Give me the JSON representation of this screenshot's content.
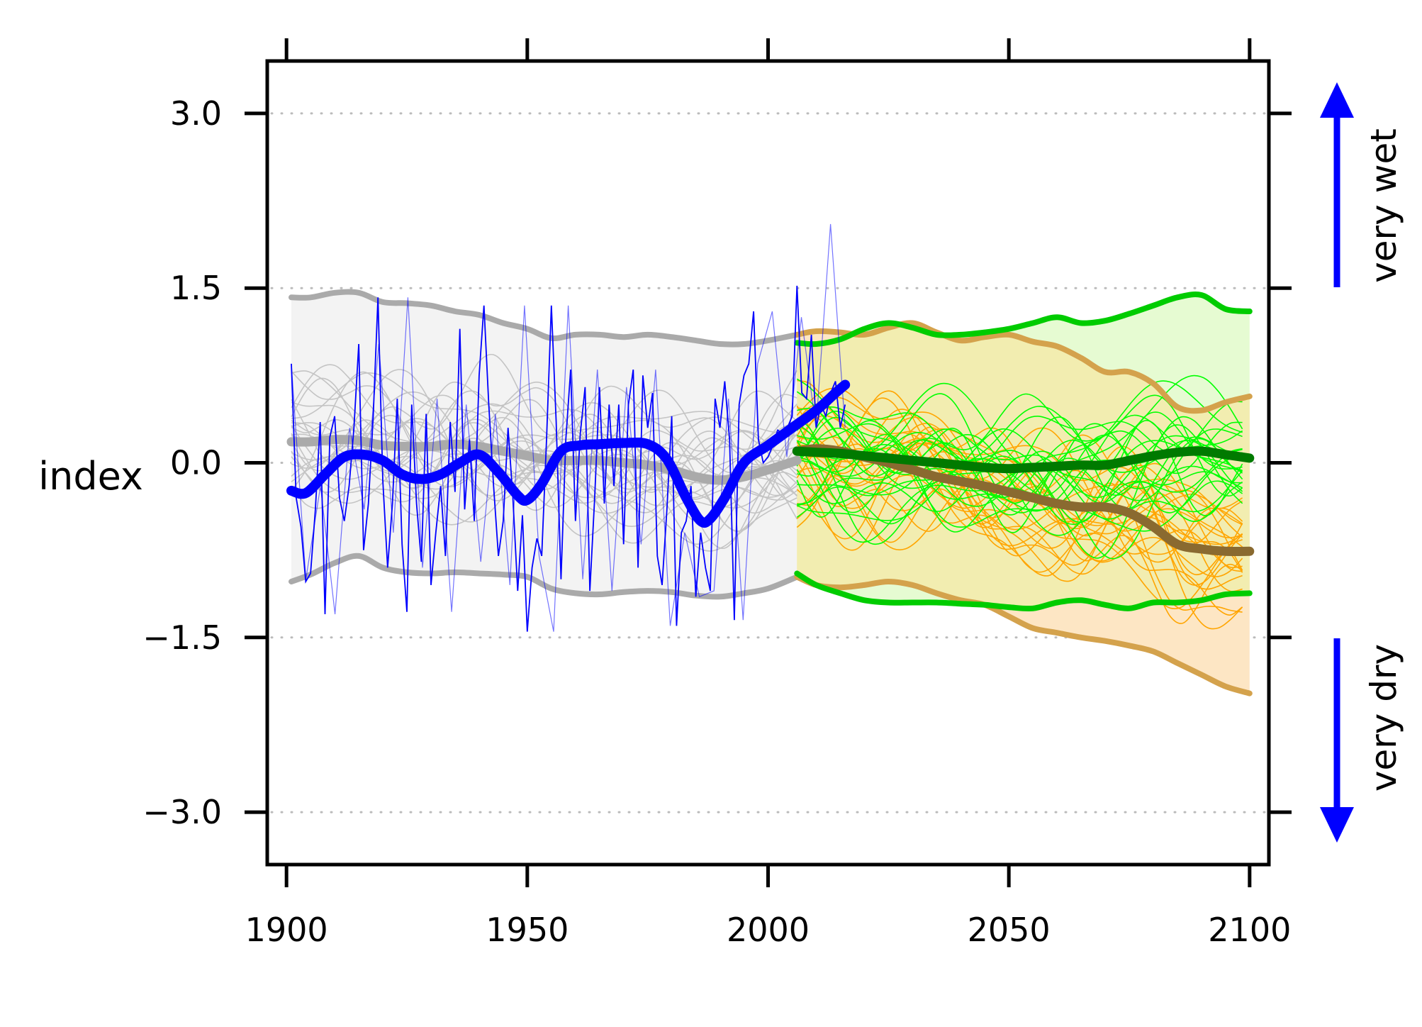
{
  "chart_data": {
    "type": "line",
    "title": "",
    "xlabel": "",
    "ylabel": "index",
    "xlim": [
      1896,
      2104
    ],
    "ylim": [
      -3.45,
      3.45
    ],
    "x_ticks": [
      1900,
      1950,
      2000,
      2050,
      2100
    ],
    "y_ticks": [
      3.0,
      1.5,
      0.0,
      -1.5,
      -3.0
    ],
    "y_tick_labels": [
      "3.0",
      "1.5",
      "0.0",
      "−1.5",
      "−3.0"
    ],
    "gridlines": "horizontal dotted at y ticks",
    "annotations": {
      "wet_label": "very wet",
      "dry_label": "very dry"
    },
    "colors": {
      "observed": "#0000ff",
      "historical": "#aaaaaa",
      "historical_band": "#f3f3f3",
      "scenario_green": "#00cc00",
      "scenario_green_mean": "#007a00",
      "scenario_green_thin": "#00ff00",
      "scenario_green_band": "#e6fbd2",
      "scenario_orange": "#d4a24c",
      "scenario_orange_mean": "#8a6a30",
      "scenario_orange_thin": "#ffa500",
      "scenario_orange_band": "#fde6c4",
      "overlap_band": "#f2edb0"
    },
    "series": [
      {
        "name": "historical ensemble upper bound",
        "x": [
          1901,
          1905,
          1910,
          1915,
          1920,
          1925,
          1930,
          1935,
          1940,
          1945,
          1950,
          1955,
          1960,
          1965,
          1970,
          1975,
          1980,
          1985,
          1990,
          1995,
          2000,
          2006
        ],
        "values": [
          1.42,
          1.42,
          1.46,
          1.46,
          1.38,
          1.37,
          1.35,
          1.3,
          1.27,
          1.2,
          1.15,
          1.07,
          1.1,
          1.1,
          1.08,
          1.1,
          1.08,
          1.05,
          1.02,
          1.02,
          1.05,
          1.1
        ]
      },
      {
        "name": "historical ensemble lower bound",
        "x": [
          1901,
          1905,
          1910,
          1915,
          1920,
          1925,
          1930,
          1935,
          1940,
          1945,
          1950,
          1955,
          1960,
          1965,
          1970,
          1975,
          1980,
          1985,
          1990,
          1995,
          2000,
          2006
        ],
        "values": [
          -1.02,
          -0.96,
          -0.86,
          -0.8,
          -0.9,
          -0.94,
          -0.95,
          -0.94,
          -0.95,
          -0.96,
          -0.98,
          -1.08,
          -1.12,
          -1.13,
          -1.11,
          -1.1,
          -1.11,
          -1.14,
          -1.15,
          -1.12,
          -1.08,
          -0.98
        ]
      },
      {
        "name": "historical ensemble mean",
        "x": [
          1901,
          1905,
          1910,
          1915,
          1920,
          1925,
          1930,
          1935,
          1940,
          1945,
          1950,
          1955,
          1960,
          1965,
          1970,
          1975,
          1980,
          1985,
          1990,
          1995,
          2000,
          2006
        ],
        "values": [
          0.18,
          0.18,
          0.2,
          0.19,
          0.15,
          0.14,
          0.14,
          0.16,
          0.14,
          0.1,
          0.06,
          0.02,
          0.02,
          0.02,
          0.0,
          -0.02,
          -0.06,
          -0.12,
          -0.15,
          -0.12,
          -0.06,
          0.02
        ]
      },
      {
        "name": "observed annual index",
        "x": [
          1901,
          1902,
          1903,
          1904,
          1905,
          1906,
          1907,
          1908,
          1909,
          1910,
          1911,
          1912,
          1913,
          1914,
          1915,
          1916,
          1917,
          1918,
          1919,
          1920,
          1921,
          1922,
          1923,
          1924,
          1925,
          1926,
          1927,
          1928,
          1929,
          1930,
          1931,
          1932,
          1933,
          1934,
          1935,
          1936,
          1937,
          1938,
          1939,
          1940,
          1941,
          1942,
          1943,
          1944,
          1945,
          1946,
          1947,
          1948,
          1949,
          1950,
          1951,
          1952,
          1953,
          1954,
          1955,
          1956,
          1957,
          1958,
          1959,
          1960,
          1961,
          1962,
          1963,
          1964,
          1965,
          1966,
          1967,
          1968,
          1969,
          1970,
          1971,
          1972,
          1973,
          1974,
          1975,
          1976,
          1977,
          1978,
          1979,
          1980,
          1981,
          1982,
          1983,
          1984,
          1985,
          1986,
          1987,
          1988,
          1989,
          1990,
          1991,
          1992,
          1993,
          1994,
          1995,
          1996,
          1997,
          1998,
          1999,
          2000,
          2001,
          2002,
          2003,
          2004,
          2005,
          2006,
          2007,
          2008,
          2009,
          2010,
          2011,
          2012,
          2013,
          2014,
          2015,
          2016
        ],
        "values": [
          0.85,
          -0.3,
          -0.55,
          -1.02,
          -0.95,
          -0.4,
          0.35,
          -1.3,
          0.22,
          0.4,
          -0.3,
          -0.5,
          -0.2,
          0.3,
          1.02,
          -0.75,
          -0.35,
          0.4,
          1.42,
          -0.15,
          -0.9,
          -0.35,
          0.55,
          -0.7,
          -1.28,
          0.5,
          -0.35,
          -0.85,
          0.42,
          -1.05,
          -0.6,
          -0.2,
          -0.8,
          0.35,
          -0.25,
          1.15,
          -0.4,
          0.2,
          -0.5,
          0.75,
          1.35,
          0.5,
          -0.2,
          -0.8,
          -0.5,
          0.3,
          -0.3,
          -1.1,
          -0.45,
          -1.45,
          -0.9,
          -0.65,
          -0.8,
          0.2,
          1.35,
          0.35,
          -1.0,
          0.2,
          0.8,
          -0.5,
          0.25,
          0.65,
          -1.1,
          -0.3,
          0.65,
          -0.35,
          0.5,
          -0.2,
          0.5,
          -0.7,
          0.5,
          0.8,
          -0.9,
          0.75,
          0.3,
          0.6,
          -0.8,
          -1.05,
          -0.4,
          0.4,
          -1.4,
          -0.6,
          -0.5,
          -0.2,
          -1.15,
          -0.6,
          -0.9,
          -1.1,
          0.55,
          0.3,
          0.7,
          0.2,
          -1.35,
          0.5,
          0.75,
          0.85,
          1.3,
          0.2,
          0.0,
          0.05,
          0.15,
          0.28,
          0.25,
          0.3,
          0.4,
          1.52,
          0.6,
          0.55,
          1.1,
          0.3,
          0.5,
          0.4,
          0.6,
          0.7,
          0.3,
          0.5
        ],
        "display_values": [
          0.85,
          -1.0,
          -0.2,
          -1.3,
          0.3,
          -0.4,
          1.02,
          -0.6,
          1.42,
          -0.9,
          0.55,
          -1.28,
          0.5,
          -0.85,
          0.42,
          -1.05,
          1.35,
          -0.8,
          -1.45,
          1.35,
          -1.0,
          0.8,
          -1.1,
          0.65,
          -0.7,
          0.8,
          -1.4,
          -0.6,
          -1.15,
          -1.1,
          0.55,
          -1.35,
          0.85,
          1.3,
          0.05,
          1.25,
          0.3,
          2.05,
          0.3
        ]
      },
      {
        "name": "observed smoothed",
        "x": [
          1901,
          1904,
          1908,
          1912,
          1916,
          1920,
          1924,
          1928,
          1932,
          1936,
          1940,
          1944,
          1948,
          1950,
          1953,
          1957,
          1961,
          1965,
          1970,
          1975,
          1979,
          1983,
          1986,
          1988,
          1991,
          1995,
          2000,
          2005,
          2010,
          2014,
          2016
        ],
        "values": [
          -0.24,
          -0.26,
          -0.1,
          0.05,
          0.07,
          0.02,
          -0.1,
          -0.14,
          -0.1,
          0.0,
          0.07,
          -0.08,
          -0.28,
          -0.32,
          -0.18,
          0.1,
          0.15,
          0.16,
          0.17,
          0.16,
          0.03,
          -0.3,
          -0.5,
          -0.48,
          -0.3,
          0.0,
          0.15,
          0.3,
          0.45,
          0.6,
          0.67
        ]
      },
      {
        "name": "green scenario upper bound",
        "x": [
          2006,
          2010,
          2015,
          2020,
          2025,
          2030,
          2035,
          2040,
          2045,
          2050,
          2055,
          2060,
          2065,
          2070,
          2075,
          2080,
          2085,
          2090,
          2095,
          2100
        ],
        "values": [
          1.03,
          1.02,
          1.06,
          1.15,
          1.2,
          1.16,
          1.1,
          1.1,
          1.12,
          1.15,
          1.2,
          1.25,
          1.2,
          1.22,
          1.28,
          1.35,
          1.42,
          1.44,
          1.32,
          1.3
        ]
      },
      {
        "name": "green scenario lower bound",
        "x": [
          2006,
          2010,
          2015,
          2020,
          2025,
          2030,
          2035,
          2040,
          2045,
          2050,
          2055,
          2060,
          2065,
          2070,
          2075,
          2080,
          2085,
          2090,
          2095,
          2100
        ],
        "values": [
          -0.95,
          -1.05,
          -1.12,
          -1.18,
          -1.2,
          -1.2,
          -1.2,
          -1.21,
          -1.22,
          -1.24,
          -1.25,
          -1.2,
          -1.18,
          -1.22,
          -1.25,
          -1.2,
          -1.2,
          -1.18,
          -1.13,
          -1.12
        ]
      },
      {
        "name": "green scenario mean",
        "x": [
          2006,
          2010,
          2015,
          2020,
          2025,
          2030,
          2035,
          2040,
          2045,
          2050,
          2055,
          2060,
          2065,
          2070,
          2075,
          2080,
          2085,
          2090,
          2095,
          2100
        ],
        "values": [
          0.1,
          0.09,
          0.08,
          0.06,
          0.04,
          0.02,
          0.0,
          -0.02,
          -0.04,
          -0.05,
          -0.04,
          -0.03,
          -0.02,
          -0.02,
          0.02,
          0.06,
          0.09,
          0.1,
          0.07,
          0.04
        ]
      },
      {
        "name": "orange scenario upper bound",
        "x": [
          2006,
          2010,
          2015,
          2020,
          2025,
          2030,
          2035,
          2040,
          2045,
          2050,
          2055,
          2060,
          2065,
          2070,
          2075,
          2080,
          2085,
          2090,
          2095,
          2100
        ],
        "values": [
          1.1,
          1.13,
          1.12,
          1.1,
          1.16,
          1.2,
          1.12,
          1.05,
          1.08,
          1.1,
          1.04,
          1.0,
          0.9,
          0.78,
          0.78,
          0.68,
          0.48,
          0.45,
          0.52,
          0.57
        ]
      },
      {
        "name": "orange scenario lower bound",
        "x": [
          2006,
          2010,
          2015,
          2020,
          2025,
          2030,
          2035,
          2040,
          2045,
          2050,
          2055,
          2060,
          2065,
          2070,
          2075,
          2080,
          2085,
          2090,
          2095,
          2100
        ],
        "values": [
          -0.98,
          -1.05,
          -1.07,
          -1.05,
          -1.02,
          -1.05,
          -1.12,
          -1.18,
          -1.22,
          -1.32,
          -1.42,
          -1.46,
          -1.5,
          -1.53,
          -1.57,
          -1.62,
          -1.72,
          -1.82,
          -1.92,
          -1.98
        ]
      },
      {
        "name": "orange scenario mean",
        "x": [
          2006,
          2010,
          2015,
          2020,
          2025,
          2030,
          2035,
          2040,
          2045,
          2050,
          2055,
          2060,
          2065,
          2070,
          2075,
          2080,
          2085,
          2090,
          2095,
          2100
        ],
        "values": [
          0.1,
          0.12,
          0.1,
          0.05,
          0.0,
          -0.06,
          -0.12,
          -0.16,
          -0.2,
          -0.25,
          -0.3,
          -0.35,
          -0.38,
          -0.38,
          -0.43,
          -0.55,
          -0.7,
          -0.74,
          -0.76,
          -0.76
        ]
      }
    ]
  }
}
